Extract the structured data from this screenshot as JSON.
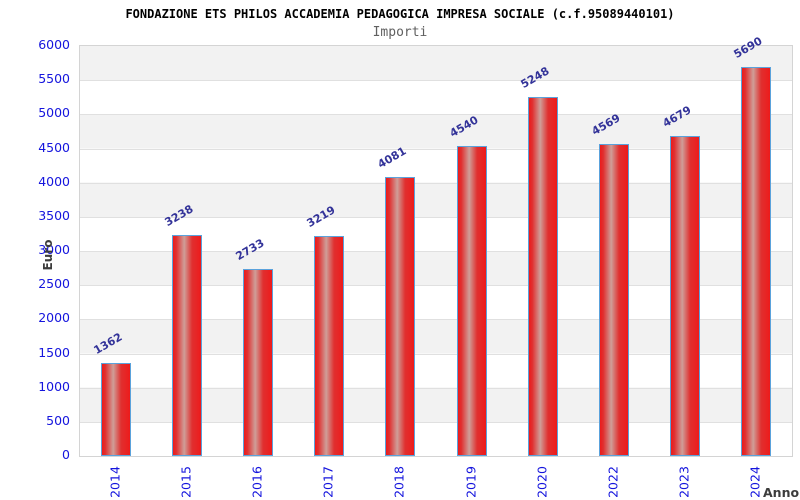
{
  "header": {
    "title": "FONDAZIONE ETS PHILOS ACCADEMIA PEDAGOGICA IMPRESA SOCIALE (c.f.95089440101)",
    "subtitle": "Importi"
  },
  "chart_data": {
    "type": "bar",
    "title": "FONDAZIONE ETS PHILOS ACCADEMIA PEDAGOGICA IMPRESA SOCIALE (c.f.95089440101)",
    "subtitle": "Importi",
    "categories": [
      "2014",
      "2015",
      "2016",
      "2017",
      "2018",
      "2019",
      "2020",
      "2022",
      "2023",
      "2024"
    ],
    "values": [
      1362,
      3238,
      2733,
      3219,
      4081,
      4540,
      5248,
      4569,
      4679,
      5690
    ],
    "xlabel": "Anno",
    "ylabel": "Euro",
    "ylim": [
      0,
      6000
    ],
    "ytick_step": 500,
    "yticks": [
      0,
      500,
      1000,
      1500,
      2000,
      2500,
      3000,
      3500,
      4000,
      4500,
      5000,
      5500,
      6000
    ],
    "grid": "horizontal-gridlines-with-alternating-bands",
    "legend": "none",
    "colors": {
      "title": "#000000",
      "subtitle": "#606060",
      "tick_label": "#1515dd",
      "value_label": "#333399",
      "axis_title": "#3c3c3c",
      "bar_fill_edge": "#ed1b1b",
      "bar_fill_mid": "#e03030",
      "bar_fill_center": "#cf9e98",
      "bar_border": "#5aa2dc",
      "band": "#f2f2f2",
      "gridline": "#e0e0e0",
      "plot_border": "#d4d4d4"
    }
  }
}
